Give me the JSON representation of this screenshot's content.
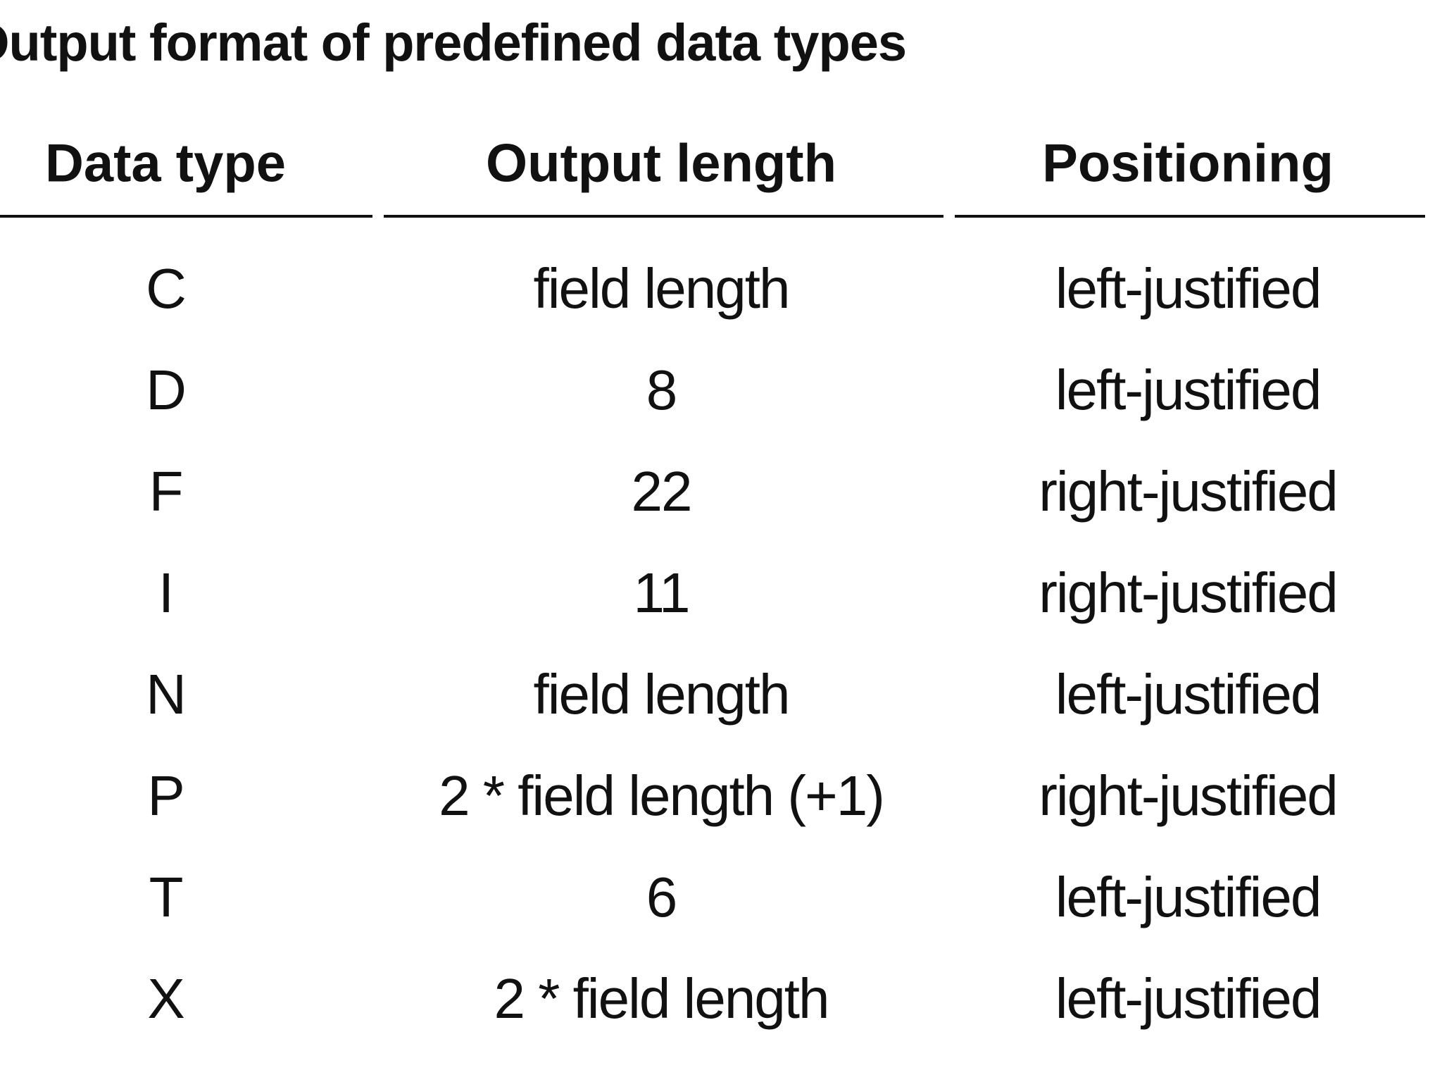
{
  "table": {
    "title": "Output format of predefined data types",
    "columns": [
      "Data type",
      "Output length",
      "Positioning"
    ],
    "rows": [
      [
        "C",
        "field length",
        "left-justified"
      ],
      [
        "D",
        "8",
        "left-justified"
      ],
      [
        "F",
        "22",
        "right-justified"
      ],
      [
        "I",
        "11",
        "right-justified"
      ],
      [
        "N",
        "field length",
        "left-justified"
      ],
      [
        "P",
        "2 * field length (+1)",
        "right-justified"
      ],
      [
        "T",
        "6",
        "left-justified"
      ],
      [
        "X",
        "2 * field length",
        "left-justified"
      ]
    ]
  }
}
